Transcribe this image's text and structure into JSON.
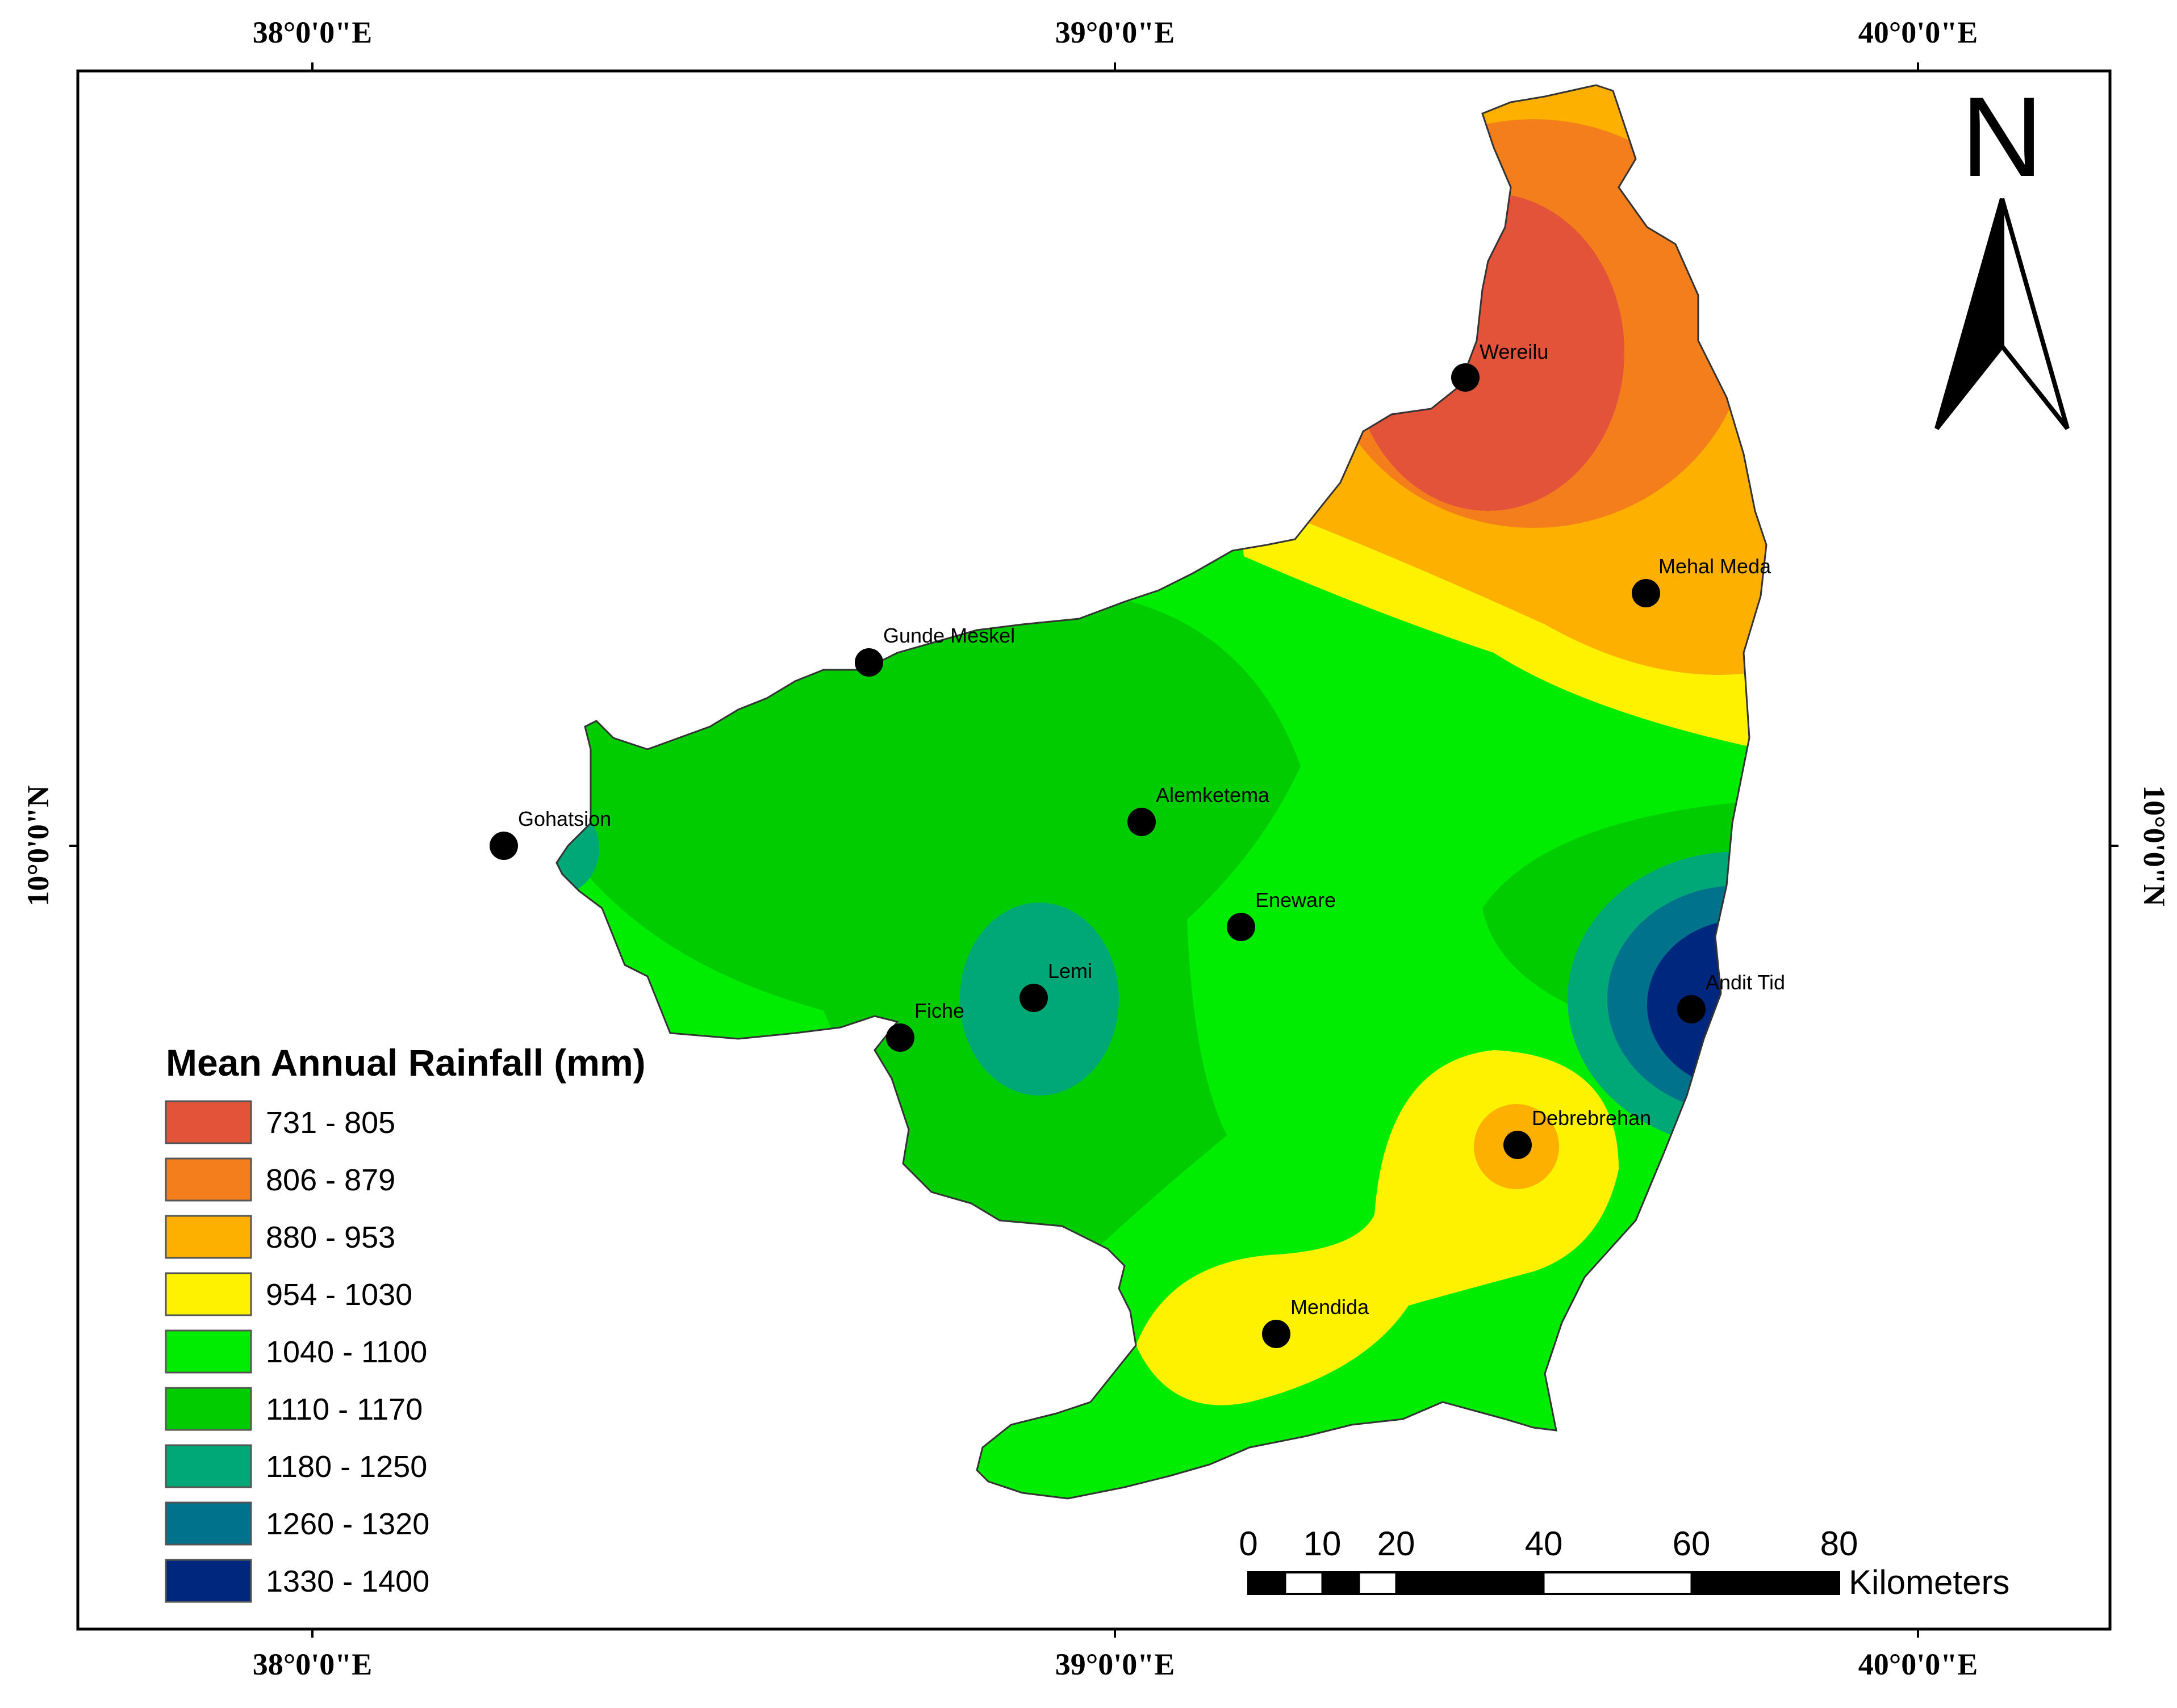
{
  "map": {
    "graticule": {
      "top": [
        "38°0'0\"E",
        "39°0'0\"E",
        "40°0'0\"E"
      ],
      "bottom": [
        "38°0'0\"E",
        "39°0'0\"E",
        "40°0'0\"E"
      ],
      "left": "10°0'0\"N",
      "right": "10°0'0\"N"
    },
    "places": [
      {
        "name": "Wereilu"
      },
      {
        "name": "Mehal Meda"
      },
      {
        "name": "Gunde Meskel"
      },
      {
        "name": "Alemketema"
      },
      {
        "name": "Gohatsion"
      },
      {
        "name": "Eneware"
      },
      {
        "name": "Lemi"
      },
      {
        "name": "Fiche"
      },
      {
        "name": "Andit Tid"
      },
      {
        "name": "Debrebrehan"
      },
      {
        "name": "Mendida"
      }
    ],
    "north_label": "N",
    "north_arrow_icon": "north-arrow-icon"
  },
  "legend": {
    "title": "Mean Annual Rainfall (mm)",
    "classes": [
      {
        "label": "731 - 805",
        "color": "#E2533A"
      },
      {
        "label": "806 - 879",
        "color": "#F47E1B"
      },
      {
        "label": "880 - 953",
        "color": "#FDB000"
      },
      {
        "label": "954 - 1030",
        "color": "#FFF200"
      },
      {
        "label": "1040 - 1100",
        "color": "#00EC00"
      },
      {
        "label": "1110 - 1170",
        "color": "#00CC00"
      },
      {
        "label": "1180 - 1250",
        "color": "#00A878"
      },
      {
        "label": "1260 - 1320",
        "color": "#00728C"
      },
      {
        "label": "1330 - 1400",
        "color": "#00277E"
      }
    ]
  },
  "scalebar": {
    "ticks": [
      "0",
      "10",
      "20",
      "40",
      "60",
      "80"
    ],
    "unit": "Kilometers"
  }
}
